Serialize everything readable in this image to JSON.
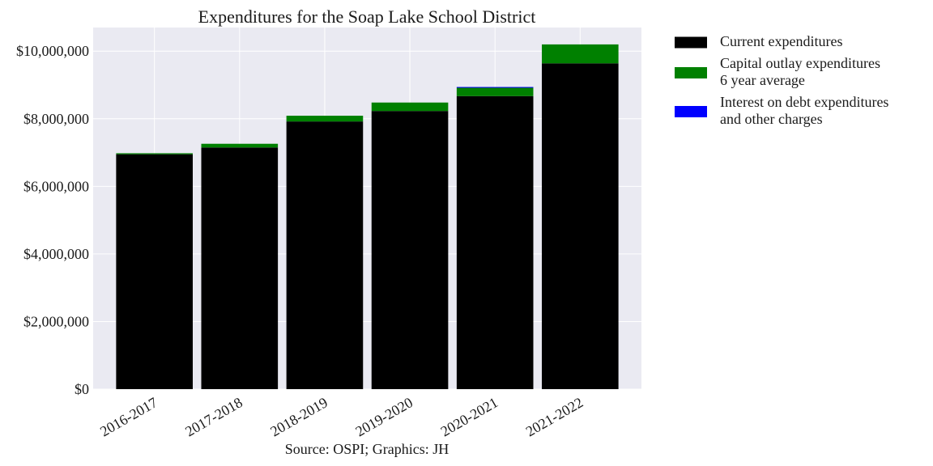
{
  "chart_data": {
    "type": "bar",
    "stacked": true,
    "title": "Expenditures for the Soap Lake School District",
    "xlabel": "",
    "ylabel": "",
    "source": "Source: OSPI; Graphics: JH",
    "categories": [
      "2016-2017",
      "2017-2018",
      "2018-2019",
      "2019-2020",
      "2020-2021",
      "2021-2022"
    ],
    "series": [
      {
        "name": "Current expenditures",
        "color": "#000000",
        "values": [
          6950000,
          7150000,
          7920000,
          8230000,
          8670000,
          9640000
        ]
      },
      {
        "name": "Capital outlay expenditures\n6 year average",
        "color": "#008000",
        "values": [
          30000,
          110000,
          170000,
          250000,
          250000,
          560000
        ]
      },
      {
        "name": "Interest on debt expenditures\nand other charges",
        "color": "#0000ff",
        "values": [
          0,
          0,
          0,
          0,
          20000,
          0
        ]
      }
    ],
    "ylim": [
      0,
      10700000
    ],
    "yticks": [
      0,
      2000000,
      4000000,
      6000000,
      8000000,
      10000000
    ],
    "ytick_labels": [
      "$0",
      "$2,000,000",
      "$4,000,000",
      "$6,000,000",
      "$8,000,000",
      "$10,000,000"
    ],
    "grid": true,
    "legend_position": "outside-right",
    "background": "#eaeaf2"
  }
}
